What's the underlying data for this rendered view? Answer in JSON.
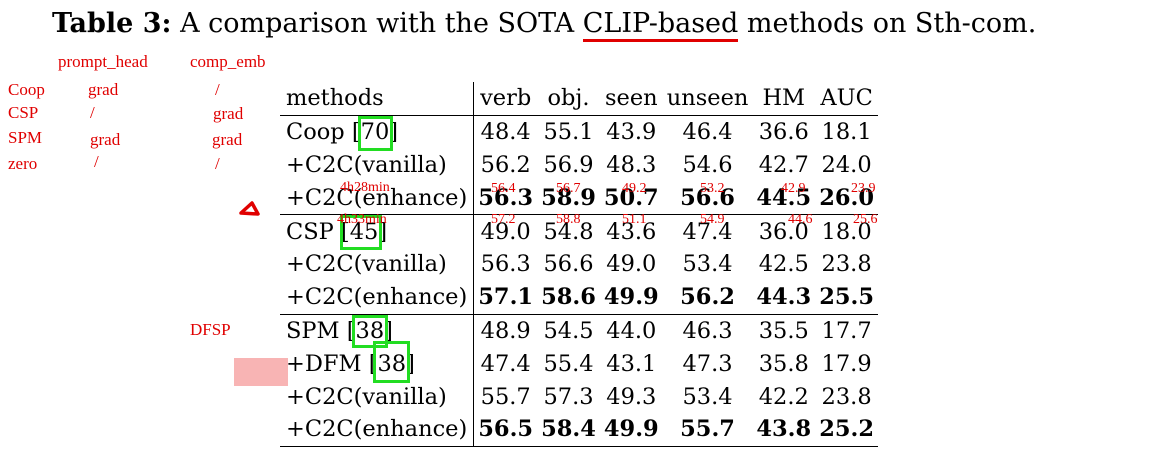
{
  "caption": {
    "label": "Table 3:",
    "before": " A comparison with the SOTA ",
    "underlined": "CLIP-based",
    "after": " methods on Sth-com."
  },
  "annotations": {
    "col_headers": [
      "prompt_head",
      "comp_emb"
    ],
    "rows": [
      {
        "name": "Coop",
        "prompt_head": "grad",
        "comp_emb": "/"
      },
      {
        "name": "CSP",
        "prompt_head": "/",
        "comp_emb": "grad"
      },
      {
        "name": "SPM",
        "prompt_head": "grad",
        "comp_emb": "grad"
      },
      {
        "name": "zero",
        "prompt_head": "/",
        "comp_emb": "/"
      }
    ],
    "dfsp": "DFSP",
    "time1": "4h28min",
    "time2": "4h33min",
    "overlay1": [
      "56.4",
      "56.7",
      "49.2",
      "53.2",
      "42.9",
      "23.9"
    ],
    "overlay2": [
      "57.2",
      "58.8",
      "51.1",
      "54.9",
      "44.6",
      "25.6"
    ]
  },
  "table": {
    "headers": [
      "methods",
      "verb",
      "obj.",
      "seen",
      "unseen",
      "HM",
      "AUC"
    ],
    "rows": [
      {
        "method": "Coop [",
        "ref": "70",
        "close": "]",
        "values": [
          "48.4",
          "55.1",
          "43.9",
          "46.4",
          "36.6",
          "18.1"
        ]
      },
      {
        "method": "+C2C(vanilla)",
        "values": [
          "56.2",
          "56.9",
          "48.3",
          "54.6",
          "42.7",
          "24.0"
        ]
      },
      {
        "method": "+C2C(enhance)",
        "values": [
          "56.3",
          "58.9",
          "50.7",
          "56.6",
          "44.5",
          "26.0"
        ]
      },
      {
        "method": "CSP [",
        "ref": "45",
        "close": "]",
        "values": [
          "49.0",
          "54.8",
          "43.6",
          "47.4",
          "36.0",
          "18.0"
        ]
      },
      {
        "method": "+C2C(vanilla)",
        "values": [
          "56.3",
          "56.6",
          "49.0",
          "53.4",
          "42.5",
          "23.8"
        ]
      },
      {
        "method": "+C2C(enhance)",
        "values": [
          "57.1",
          "58.6",
          "49.9",
          "56.2",
          "44.3",
          "25.5"
        ]
      },
      {
        "method": "SPM [",
        "ref": "38",
        "close": "]",
        "values": [
          "48.9",
          "54.5",
          "44.0",
          "46.3",
          "35.5",
          "17.7"
        ]
      },
      {
        "method": "+DFM [",
        "ref": "38",
        "close": "]",
        "values": [
          "47.4",
          "55.4",
          "43.1",
          "47.3",
          "35.8",
          "17.9"
        ]
      },
      {
        "method": "+C2C(vanilla)",
        "values": [
          "55.7",
          "57.3",
          "49.3",
          "53.4",
          "42.2",
          "23.8"
        ]
      },
      {
        "method": "+C2C(enhance)",
        "values": [
          "56.5",
          "58.4",
          "49.9",
          "55.7",
          "43.8",
          "25.2"
        ]
      }
    ]
  }
}
